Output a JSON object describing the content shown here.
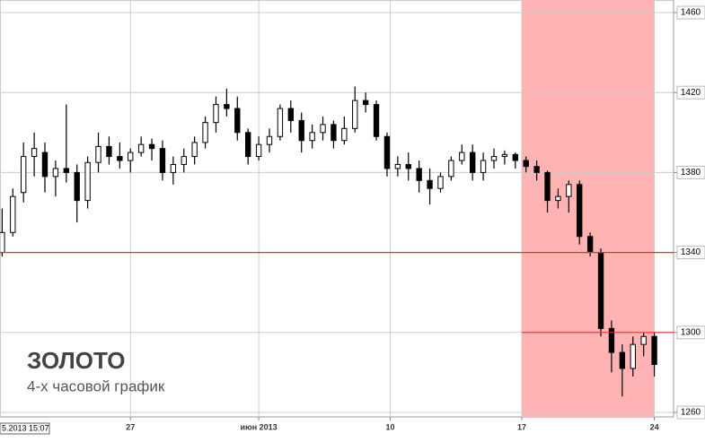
{
  "chart_data": {
    "type": "candlestick",
    "title": "ЗОЛОТО",
    "subtitle": "4-х часовой график",
    "cursor_label": "5.2013 15:07",
    "open": [
      1340,
      1350,
      1370,
      1388,
      1390,
      1378,
      1382,
      1380,
      1366,
      1385,
      1393,
      1388,
      1386,
      1390,
      1394,
      1392,
      1380,
      1384,
      1388,
      1395,
      1405,
      1414,
      1412,
      1400,
      1388,
      1394,
      1398,
      1412,
      1406,
      1396,
      1400,
      1404,
      1396,
      1402,
      1416,
      1414,
      1398,
      1382,
      1384,
      1382,
      1376,
      1372,
      1378,
      1386,
      1390,
      1380,
      1386,
      1388,
      1389,
      1386,
      1383,
      1380,
      1366,
      1368,
      1374,
      1348,
      1340,
      1302,
      1290,
      1282,
      1294,
      1298
    ],
    "high": [
      1362,
      1372,
      1395,
      1400,
      1395,
      1386,
      1414,
      1384,
      1388,
      1400,
      1398,
      1395,
      1392,
      1398,
      1397,
      1396,
      1388,
      1392,
      1398,
      1408,
      1418,
      1422,
      1418,
      1402,
      1398,
      1402,
      1414,
      1416,
      1410,
      1404,
      1408,
      1406,
      1408,
      1423,
      1420,
      1416,
      1400,
      1388,
      1390,
      1386,
      1382,
      1380,
      1388,
      1394,
      1394,
      1390,
      1392,
      1391,
      1390,
      1388,
      1386,
      1381,
      1372,
      1376,
      1376,
      1350,
      1342,
      1306,
      1294,
      1298,
      1300,
      1300
    ],
    "low": [
      1338,
      1348,
      1365,
      1378,
      1370,
      1368,
      1375,
      1355,
      1362,
      1380,
      1384,
      1382,
      1380,
      1388,
      1386,
      1376,
      1374,
      1380,
      1384,
      1392,
      1400,
      1408,
      1396,
      1384,
      1386,
      1390,
      1396,
      1400,
      1390,
      1392,
      1396,
      1392,
      1394,
      1400,
      1410,
      1396,
      1378,
      1378,
      1376,
      1370,
      1364,
      1370,
      1376,
      1384,
      1376,
      1376,
      1382,
      1384,
      1382,
      1380,
      1376,
      1360,
      1362,
      1360,
      1344,
      1338,
      1298,
      1280,
      1268,
      1278,
      1288,
      1278
    ],
    "close": [
      1350,
      1368,
      1388,
      1392,
      1378,
      1382,
      1380,
      1366,
      1385,
      1393,
      1388,
      1386,
      1390,
      1394,
      1392,
      1380,
      1384,
      1388,
      1395,
      1405,
      1414,
      1412,
      1400,
      1388,
      1394,
      1398,
      1412,
      1406,
      1396,
      1400,
      1404,
      1396,
      1402,
      1416,
      1414,
      1398,
      1382,
      1384,
      1382,
      1376,
      1372,
      1378,
      1386,
      1390,
      1380,
      1386,
      1388,
      1389,
      1386,
      1383,
      1380,
      1366,
      1368,
      1374,
      1348,
      1340,
      1302,
      1290,
      1282,
      1294,
      1298,
      1284
    ],
    "up_color": "#ffffff",
    "down_color": "#000000",
    "xlim": [
      -0.2,
      62.8
    ],
    "xticks": [
      {
        "value": 12,
        "label": "27"
      },
      {
        "value": 24,
        "label": "июн 2013"
      },
      {
        "value": 36.3,
        "label": "10"
      },
      {
        "value": 48.6,
        "label": "17"
      },
      {
        "value": 61,
        "label": "24"
      }
    ],
    "ylim": [
      1260,
      1460
    ],
    "yticks": [
      1260,
      1300,
      1340,
      1380,
      1420,
      1460
    ],
    "grid": true,
    "highlight": {
      "xspan": [
        48.6,
        61
      ],
      "color": "#ffb3b3"
    },
    "reference_lines": [
      {
        "value": 1340,
        "color": "#e8332a"
      },
      {
        "value": 1300,
        "color": "#e8332a",
        "from_x": 48.6
      }
    ]
  }
}
